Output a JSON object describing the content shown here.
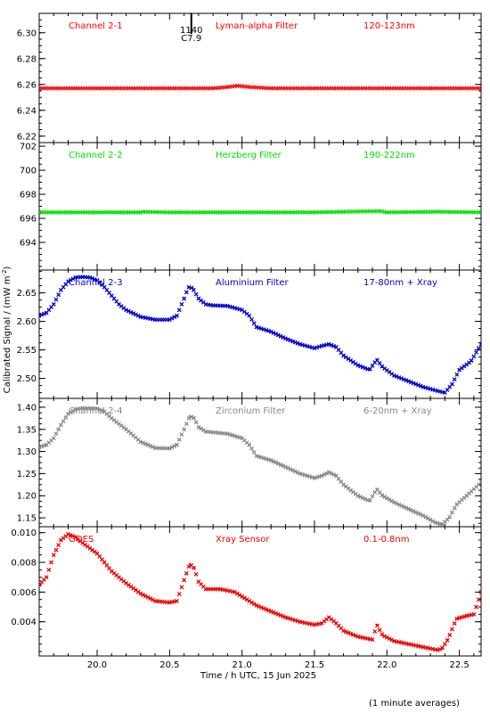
{
  "figure": {
    "xlabel": "Time / h UTC, 15 Jun 2025",
    "ylabel": "Calibrated Signal / (mW m",
    "ylabel_sup": "-2",
    "ylabel_close": ")",
    "footnote": "(1 minute averages)",
    "event_marker": {
      "x": 20.65,
      "label_top": "1140",
      "label_bottom": "C7.9"
    }
  },
  "chart_data": [
    {
      "type": "scatter",
      "channel": "Channel 2-1",
      "filter": "Lyman-alpha Filter",
      "band": "120-123nm",
      "color": "#ff0000",
      "xlim": [
        19.6,
        22.65
      ],
      "ylim": [
        6.215,
        6.315
      ],
      "yticks": [
        6.22,
        6.24,
        6.26,
        6.28,
        6.3
      ],
      "ytick_labels": [
        "6.22",
        "6.24",
        "6.26",
        "6.28",
        "6.30"
      ],
      "points": [
        [
          19.6,
          6.257
        ],
        [
          20.0,
          6.257
        ],
        [
          20.5,
          6.257
        ],
        [
          20.8,
          6.257
        ],
        [
          20.9,
          6.258
        ],
        [
          20.97,
          6.259
        ],
        [
          21.05,
          6.258
        ],
        [
          21.2,
          6.257
        ],
        [
          21.5,
          6.257
        ],
        [
          22.0,
          6.257
        ],
        [
          22.3,
          6.257
        ],
        [
          22.5,
          6.257
        ],
        [
          22.65,
          6.257
        ]
      ]
    },
    {
      "type": "scatter",
      "channel": "Channel 2-2",
      "filter": "Herzberg Filter",
      "band": "190-222nm",
      "color": "#00e000",
      "xlim": [
        19.6,
        22.65
      ],
      "ylim": [
        691.7,
        702.3
      ],
      "yticks": [
        694,
        696,
        698,
        700,
        702
      ],
      "ytick_labels": [
        "694",
        "696",
        "698",
        "700",
        "702"
      ],
      "points": [
        [
          19.6,
          696.5
        ],
        [
          20.3,
          696.5
        ],
        [
          20.32,
          696.55
        ],
        [
          20.5,
          696.5
        ],
        [
          21.0,
          696.5
        ],
        [
          21.5,
          696.5
        ],
        [
          21.95,
          696.6
        ],
        [
          22.0,
          696.5
        ],
        [
          22.35,
          696.55
        ],
        [
          22.65,
          696.5
        ]
      ]
    },
    {
      "type": "scatter",
      "channel": "Channel 2-3",
      "filter": "Aluminium Filter",
      "band": "17-80nm + Xray",
      "color": "#0000cc",
      "xlim": [
        19.6,
        22.65
      ],
      "ylim": [
        2.465,
        2.69
      ],
      "yticks": [
        2.5,
        2.55,
        2.6,
        2.65
      ],
      "ytick_labels": [
        "2.50",
        "2.55",
        "2.60",
        "2.65"
      ],
      "points": [
        [
          19.6,
          2.61
        ],
        [
          19.65,
          2.615
        ],
        [
          19.7,
          2.63
        ],
        [
          19.75,
          2.655
        ],
        [
          19.8,
          2.67
        ],
        [
          19.85,
          2.677
        ],
        [
          19.9,
          2.678
        ],
        [
          19.95,
          2.677
        ],
        [
          20.0,
          2.672
        ],
        [
          20.05,
          2.66
        ],
        [
          20.1,
          2.645
        ],
        [
          20.15,
          2.63
        ],
        [
          20.2,
          2.62
        ],
        [
          20.3,
          2.608
        ],
        [
          20.4,
          2.603
        ],
        [
          20.5,
          2.603
        ],
        [
          20.55,
          2.61
        ],
        [
          20.6,
          2.64
        ],
        [
          20.63,
          2.66
        ],
        [
          20.66,
          2.658
        ],
        [
          20.7,
          2.64
        ],
        [
          20.75,
          2.63
        ],
        [
          20.8,
          2.628
        ],
        [
          20.9,
          2.627
        ],
        [
          21.0,
          2.62
        ],
        [
          21.05,
          2.61
        ],
        [
          21.1,
          2.59
        ],
        [
          21.2,
          2.582
        ],
        [
          21.3,
          2.57
        ],
        [
          21.4,
          2.56
        ],
        [
          21.5,
          2.553
        ],
        [
          21.55,
          2.557
        ],
        [
          21.6,
          2.56
        ],
        [
          21.65,
          2.555
        ],
        [
          21.7,
          2.54
        ],
        [
          21.8,
          2.523
        ],
        [
          21.88,
          2.515
        ],
        [
          21.93,
          2.533
        ],
        [
          21.97,
          2.52
        ],
        [
          22.05,
          2.505
        ],
        [
          22.15,
          2.495
        ],
        [
          22.25,
          2.485
        ],
        [
          22.35,
          2.478
        ],
        [
          22.4,
          2.475
        ],
        [
          22.45,
          2.49
        ],
        [
          22.5,
          2.515
        ],
        [
          22.58,
          2.53
        ],
        [
          22.65,
          2.56
        ]
      ]
    },
    {
      "type": "scatter",
      "channel": "Channel 2-4",
      "filter": "Zirconium Filter",
      "band": "6-20nm + Xray",
      "color": "#888888",
      "xlim": [
        19.6,
        22.65
      ],
      "ylim": [
        1.13,
        1.42
      ],
      "yticks": [
        1.15,
        1.2,
        1.25,
        1.3,
        1.35,
        1.4
      ],
      "ytick_labels": [
        "1.15",
        "1.20",
        "1.25",
        "1.30",
        "1.35",
        "1.40"
      ],
      "points": [
        [
          19.6,
          1.31
        ],
        [
          19.65,
          1.315
        ],
        [
          19.7,
          1.33
        ],
        [
          19.75,
          1.36
        ],
        [
          19.8,
          1.385
        ],
        [
          19.85,
          1.395
        ],
        [
          19.9,
          1.398
        ],
        [
          20.0,
          1.397
        ],
        [
          20.05,
          1.39
        ],
        [
          20.1,
          1.375
        ],
        [
          20.2,
          1.35
        ],
        [
          20.3,
          1.322
        ],
        [
          20.4,
          1.308
        ],
        [
          20.5,
          1.307
        ],
        [
          20.55,
          1.315
        ],
        [
          20.6,
          1.35
        ],
        [
          20.64,
          1.38
        ],
        [
          20.67,
          1.375
        ],
        [
          20.7,
          1.355
        ],
        [
          20.75,
          1.345
        ],
        [
          20.9,
          1.34
        ],
        [
          21.0,
          1.33
        ],
        [
          21.05,
          1.315
        ],
        [
          21.1,
          1.29
        ],
        [
          21.2,
          1.28
        ],
        [
          21.3,
          1.265
        ],
        [
          21.4,
          1.25
        ],
        [
          21.5,
          1.24
        ],
        [
          21.55,
          1.245
        ],
        [
          21.6,
          1.253
        ],
        [
          21.65,
          1.245
        ],
        [
          21.7,
          1.225
        ],
        [
          21.8,
          1.2
        ],
        [
          21.88,
          1.188
        ],
        [
          21.93,
          1.215
        ],
        [
          21.97,
          1.2
        ],
        [
          22.05,
          1.185
        ],
        [
          22.15,
          1.17
        ],
        [
          22.25,
          1.155
        ],
        [
          22.33,
          1.14
        ],
        [
          22.38,
          1.135
        ],
        [
          22.43,
          1.15
        ],
        [
          22.48,
          1.18
        ],
        [
          22.55,
          1.2
        ],
        [
          22.65,
          1.23
        ]
      ]
    },
    {
      "type": "scatter",
      "channel": "GOES",
      "filter": "Xray Sensor",
      "band": "0.1-0.8nm",
      "color": "#ee0000",
      "xlim": [
        19.6,
        22.65
      ],
      "ylim": [
        0.0017,
        0.0104
      ],
      "yticks": [
        0.004,
        0.006,
        0.008,
        0.01
      ],
      "ytick_labels": [
        "0.004",
        "0.006",
        "0.008",
        "0.010"
      ],
      "points": [
        [
          19.6,
          0.0065
        ],
        [
          19.65,
          0.007
        ],
        [
          19.7,
          0.0085
        ],
        [
          19.75,
          0.0095
        ],
        [
          19.8,
          0.0099
        ],
        [
          19.85,
          0.0097
        ],
        [
          19.9,
          0.0093
        ],
        [
          20.0,
          0.0086
        ],
        [
          20.05,
          0.008
        ],
        [
          20.1,
          0.0074
        ],
        [
          20.2,
          0.0066
        ],
        [
          20.3,
          0.0059
        ],
        [
          20.4,
          0.0054
        ],
        [
          20.5,
          0.0053
        ],
        [
          20.55,
          0.0054
        ],
        [
          20.6,
          0.0068
        ],
        [
          20.64,
          0.0079
        ],
        [
          20.67,
          0.0076
        ],
        [
          20.7,
          0.0067
        ],
        [
          20.75,
          0.0062
        ],
        [
          20.85,
          0.0062
        ],
        [
          20.95,
          0.006
        ],
        [
          21.0,
          0.0057
        ],
        [
          21.1,
          0.0051
        ],
        [
          21.2,
          0.0047
        ],
        [
          21.3,
          0.0043
        ],
        [
          21.4,
          0.004
        ],
        [
          21.5,
          0.0038
        ],
        [
          21.55,
          0.0039
        ],
        [
          21.6,
          0.0043
        ],
        [
          21.65,
          0.0039
        ],
        [
          21.7,
          0.0034
        ],
        [
          21.8,
          0.003
        ],
        [
          21.9,
          0.0028
        ],
        [
          21.93,
          0.0038
        ],
        [
          21.97,
          0.0031
        ],
        [
          22.05,
          0.0027
        ],
        [
          22.15,
          0.0025
        ],
        [
          22.25,
          0.0023
        ],
        [
          22.35,
          0.0021
        ],
        [
          22.38,
          0.0022
        ],
        [
          22.42,
          0.0028
        ],
        [
          22.48,
          0.0042
        ],
        [
          22.55,
          0.0044
        ],
        [
          22.6,
          0.0045
        ],
        [
          22.65,
          0.006
        ]
      ]
    }
  ],
  "xaxis": {
    "ticks": [
      20.0,
      20.5,
      21.0,
      21.5,
      22.0,
      22.5
    ],
    "tick_labels": [
      "20.0",
      "20.5",
      "21.0",
      "21.5",
      "22.0",
      "22.5"
    ],
    "minor_step": 0.1
  }
}
